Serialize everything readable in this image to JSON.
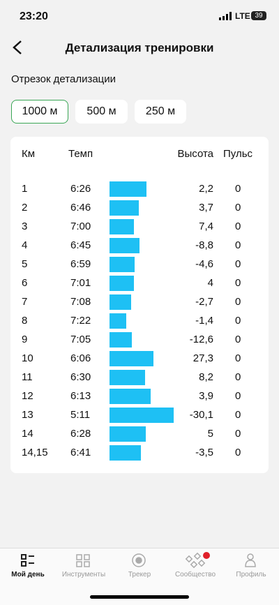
{
  "status": {
    "time": "23:20",
    "network": "LTE",
    "battery": "39"
  },
  "header": {
    "title": "Детализация тренировки"
  },
  "segment": {
    "label": "Отрезок детализации",
    "options": [
      "1000 м",
      "500 м",
      "250 м"
    ],
    "selected": 0
  },
  "table": {
    "columns": [
      "Км",
      "Темп",
      "Высота",
      "Пульс"
    ],
    "rows": [
      [
        "1",
        "6:26",
        "2,2",
        "0"
      ],
      [
        "2",
        "6:46",
        "3,7",
        "0"
      ],
      [
        "3",
        "7:00",
        "7,4",
        "0"
      ],
      [
        "4",
        "6:45",
        "-8,8",
        "0"
      ],
      [
        "5",
        "6:59",
        "-4,6",
        "0"
      ],
      [
        "6",
        "7:01",
        "4",
        "0"
      ],
      [
        "7",
        "7:08",
        "-2,7",
        "0"
      ],
      [
        "8",
        "7:22",
        "-1,4",
        "0"
      ],
      [
        "9",
        "7:05",
        "-12,6",
        "0"
      ],
      [
        "10",
        "6:06",
        "27,3",
        "0"
      ],
      [
        "11",
        "6:30",
        "8,2",
        "0"
      ],
      [
        "12",
        "6:13",
        "3,9",
        "0"
      ],
      [
        "13",
        "5:11",
        "-30,1",
        "0"
      ],
      [
        "14",
        "6:28",
        "5",
        "0"
      ],
      [
        "14,15",
        "6:41",
        "-3,5",
        "0"
      ]
    ]
  },
  "tabs": [
    "Мой день",
    "Инструменты",
    "Трекер",
    "Сообщество",
    "Профиль"
  ]
}
